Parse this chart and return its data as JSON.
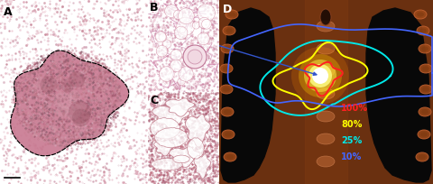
{
  "panel_labels": [
    "A",
    "B",
    "C",
    "D"
  ],
  "label_color": "black",
  "label_fontsize": 9,
  "label_fontweight": "bold",
  "dose_legend": [
    {
      "pct": "100%",
      "color": "#ff2020"
    },
    {
      "pct": "80%",
      "color": "#ffff00"
    },
    {
      "pct": "25%",
      "color": "#00e8e8"
    },
    {
      "pct": "10%",
      "color": "#4466ff"
    }
  ],
  "legend_fontsize": 7,
  "figsize": [
    4.8,
    2.05
  ],
  "dpi": 100,
  "panel_A_bg": "#f0dce0",
  "panel_A_tissue_fill": "#d4899c",
  "panel_A_outer_fill": "#e8c0c8",
  "panel_B_bg": "#ffffff",
  "panel_B_tissue": "#cc8898",
  "panel_C_bg": "#ddb0b8",
  "panel_C_tissue": "#b87080",
  "contour_100_color": "#ff2020",
  "contour_80_color": "#ffff00",
  "contour_25_color": "#00e8e8",
  "contour_10_color": "#4466ff",
  "contour_lw": 1.4,
  "arrow_color": "#3355cc",
  "body_brown": "#7a3810",
  "body_dark_brown": "#5a2808",
  "lung_black": "#060606",
  "rib_color": "#9a5020"
}
